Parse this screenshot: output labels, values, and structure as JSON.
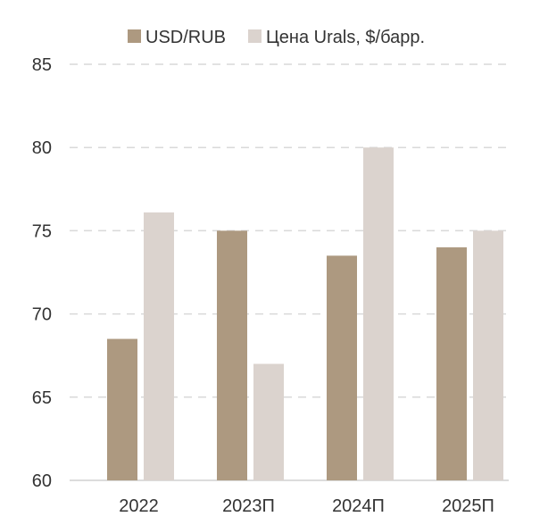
{
  "chart_data": {
    "type": "bar",
    "title": "",
    "xlabel": "",
    "ylabel": "",
    "categories": [
      "2022",
      "2023П",
      "2024П",
      "2025П"
    ],
    "series": [
      {
        "name": "USD/RUB",
        "color": "#ad9980",
        "values": [
          68.5,
          75,
          73.5,
          74
        ]
      },
      {
        "name": "Цена Urals, $/барр.",
        "color": "#dbd3ce",
        "values": [
          76.1,
          67,
          80,
          75
        ]
      }
    ],
    "ylim": [
      60,
      85
    ],
    "yticks": [
      60,
      65,
      70,
      75,
      80,
      85
    ],
    "grid": true,
    "legend_position": "top-center"
  }
}
